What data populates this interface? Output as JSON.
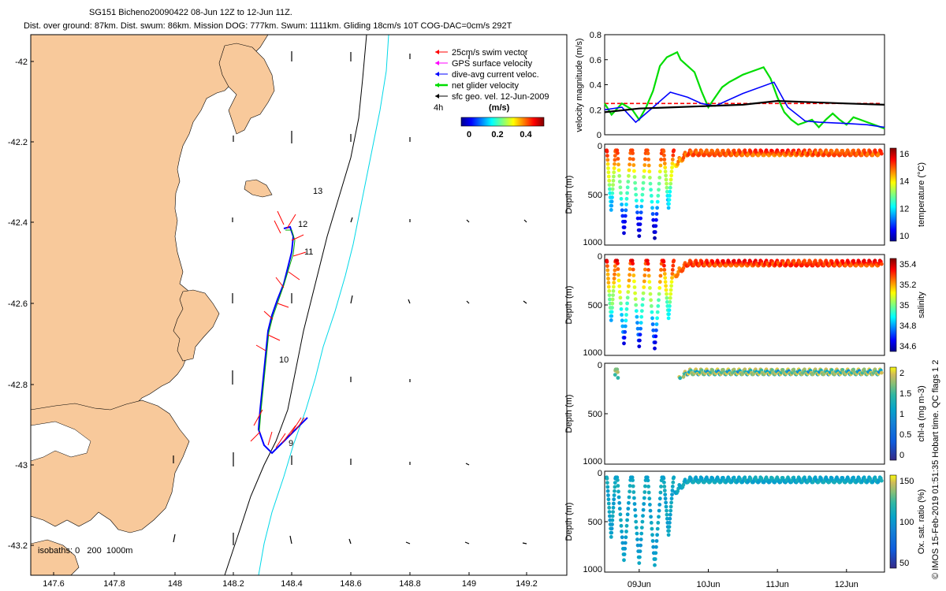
{
  "header": {
    "title_line1": "SG151 Bicheno20090422 08-Jun 12Z to 12-Jun 11Z.",
    "title_line2": "Dist. over ground: 87km. Dist. swum: 86km. Mission DOG: 777km. Swum: 1111km. Gliding 18cm/s 10T COG-DAC=0cm/s 292T"
  },
  "map": {
    "x_ticks": [
      "147.6",
      "147.8",
      "148",
      "148.2",
      "148.4",
      "148.6",
      "148.8",
      "149",
      "149.2"
    ],
    "y_ticks": [
      "-42",
      "-42.2",
      "-42.4",
      "-42.6",
      "-42.8",
      "-43",
      "-43.2"
    ],
    "isobaths_text": "isobaths: 0   200  1000m",
    "day_labels": [
      "13",
      "12",
      "11",
      "10",
      "9"
    ],
    "legend": [
      {
        "label": "25cm/s swim vector",
        "color": "#ff0000"
      },
      {
        "label": "GPS surface velocity",
        "color": "#ff00ff"
      },
      {
        "label": "dive-avg current veloc.",
        "color": "#0000ff"
      },
      {
        "label": "net glider velocity",
        "color": "#00dd00"
      },
      {
        "label": "sfc geo. vel. 12-Jun-2009",
        "color": "#000000"
      }
    ],
    "scale_label": "4h",
    "colorbar_title": "(m/s)",
    "colorbar_ticks": [
      "0",
      "0.2",
      "0.4"
    ],
    "land_color": "#f8c99b",
    "iso200_color": "#000000",
    "iso1000_color": "#00d8e8"
  },
  "chart_data": [
    {
      "type": "line",
      "ylabel": "velocity magnitude (m/s)",
      "ylim": [
        0,
        0.8
      ],
      "y_ticks": [
        "0",
        "0.2",
        "0.4",
        "0.6",
        "0.8"
      ],
      "x_days": [
        "09Jun",
        "10Jun",
        "11Jun",
        "12Jun"
      ],
      "xlim_days": [
        8.5,
        12.55
      ],
      "series": [
        {
          "name": "swim",
          "color": "#ff0000",
          "dashed": true,
          "x": [
            8.5,
            12.5
          ],
          "y": [
            0.25,
            0.25
          ]
        },
        {
          "name": "net",
          "color": "#00dd00",
          "x": [
            8.5,
            8.6,
            8.75,
            8.9,
            9.0,
            9.1,
            9.2,
            9.3,
            9.4,
            9.55,
            9.6,
            9.7,
            9.8,
            9.9,
            10.0,
            10.1,
            10.2,
            10.3,
            10.4,
            10.5,
            10.6,
            10.7,
            10.8,
            10.9,
            11.0,
            11.1,
            11.2,
            11.3,
            11.4,
            11.5,
            11.6,
            11.7,
            11.8,
            11.9,
            12.0,
            12.1,
            12.2,
            12.3,
            12.4,
            12.55
          ],
          "y": [
            0.25,
            0.16,
            0.25,
            0.2,
            0.12,
            0.22,
            0.35,
            0.55,
            0.62,
            0.66,
            0.6,
            0.55,
            0.5,
            0.35,
            0.22,
            0.3,
            0.38,
            0.42,
            0.45,
            0.48,
            0.5,
            0.52,
            0.54,
            0.45,
            0.3,
            0.18,
            0.12,
            0.08,
            0.1,
            0.12,
            0.06,
            0.12,
            0.17,
            0.12,
            0.08,
            0.14,
            0.12,
            0.1,
            0.08,
            0.05
          ]
        },
        {
          "name": "dac",
          "color": "#0000ff",
          "x": [
            8.5,
            8.75,
            8.95,
            9.2,
            9.45,
            9.7,
            9.9,
            10.1,
            10.5,
            10.95,
            11.15,
            11.4,
            11.6,
            12.0,
            12.3,
            12.55
          ],
          "y": [
            0.2,
            0.22,
            0.1,
            0.22,
            0.34,
            0.3,
            0.25,
            0.23,
            0.33,
            0.42,
            0.22,
            0.11,
            0.1,
            0.09,
            0.08,
            0.06
          ]
        },
        {
          "name": "geo",
          "color": "#000000",
          "x": [
            8.5,
            9.0,
            9.5,
            10.0,
            10.5,
            11.0,
            11.5,
            12.0,
            12.55
          ],
          "y": [
            0.18,
            0.21,
            0.22,
            0.23,
            0.24,
            0.27,
            0.26,
            0.25,
            0.24
          ]
        }
      ]
    },
    {
      "type": "scatter",
      "ylabel": "Depth (m)",
      "ylim": [
        1000,
        0
      ],
      "y_ticks": [
        "0",
        "500",
        "1000"
      ],
      "colorbar_label": "temperature (°C)",
      "colorbar_ticks": [
        "10",
        "12",
        "14",
        "16"
      ],
      "colormap": "jet"
    },
    {
      "type": "scatter",
      "ylabel": "Depth (m)",
      "ylim": [
        1000,
        0
      ],
      "y_ticks": [
        "0",
        "500",
        "1000"
      ],
      "colorbar_label": "salinity",
      "colorbar_ticks": [
        "34.6",
        "34.8",
        "35",
        "35.2",
        "35.4"
      ],
      "colormap": "jet"
    },
    {
      "type": "scatter",
      "ylabel": "Depth (m)",
      "ylim": [
        1000,
        0
      ],
      "y_ticks": [
        "0",
        "500",
        "1000"
      ],
      "colorbar_label": "chl-a (mg m-3)",
      "colorbar_ticks": [
        "0",
        "0.5",
        "1",
        "1.5",
        "2"
      ],
      "colormap": "parula"
    },
    {
      "type": "scatter",
      "ylabel": "Depth (m)",
      "ylim": [
        1000,
        0
      ],
      "y_ticks": [
        "0",
        "500",
        "1000"
      ],
      "colorbar_label": "Ox. sat. ratio (%)",
      "colorbar_ticks": [
        "50",
        "100",
        "150"
      ],
      "colormap": "parula"
    }
  ],
  "footer_vertical": "© IMOS 15-Feb-2019 01:51:35 Hobart time. QC flags 1  2"
}
